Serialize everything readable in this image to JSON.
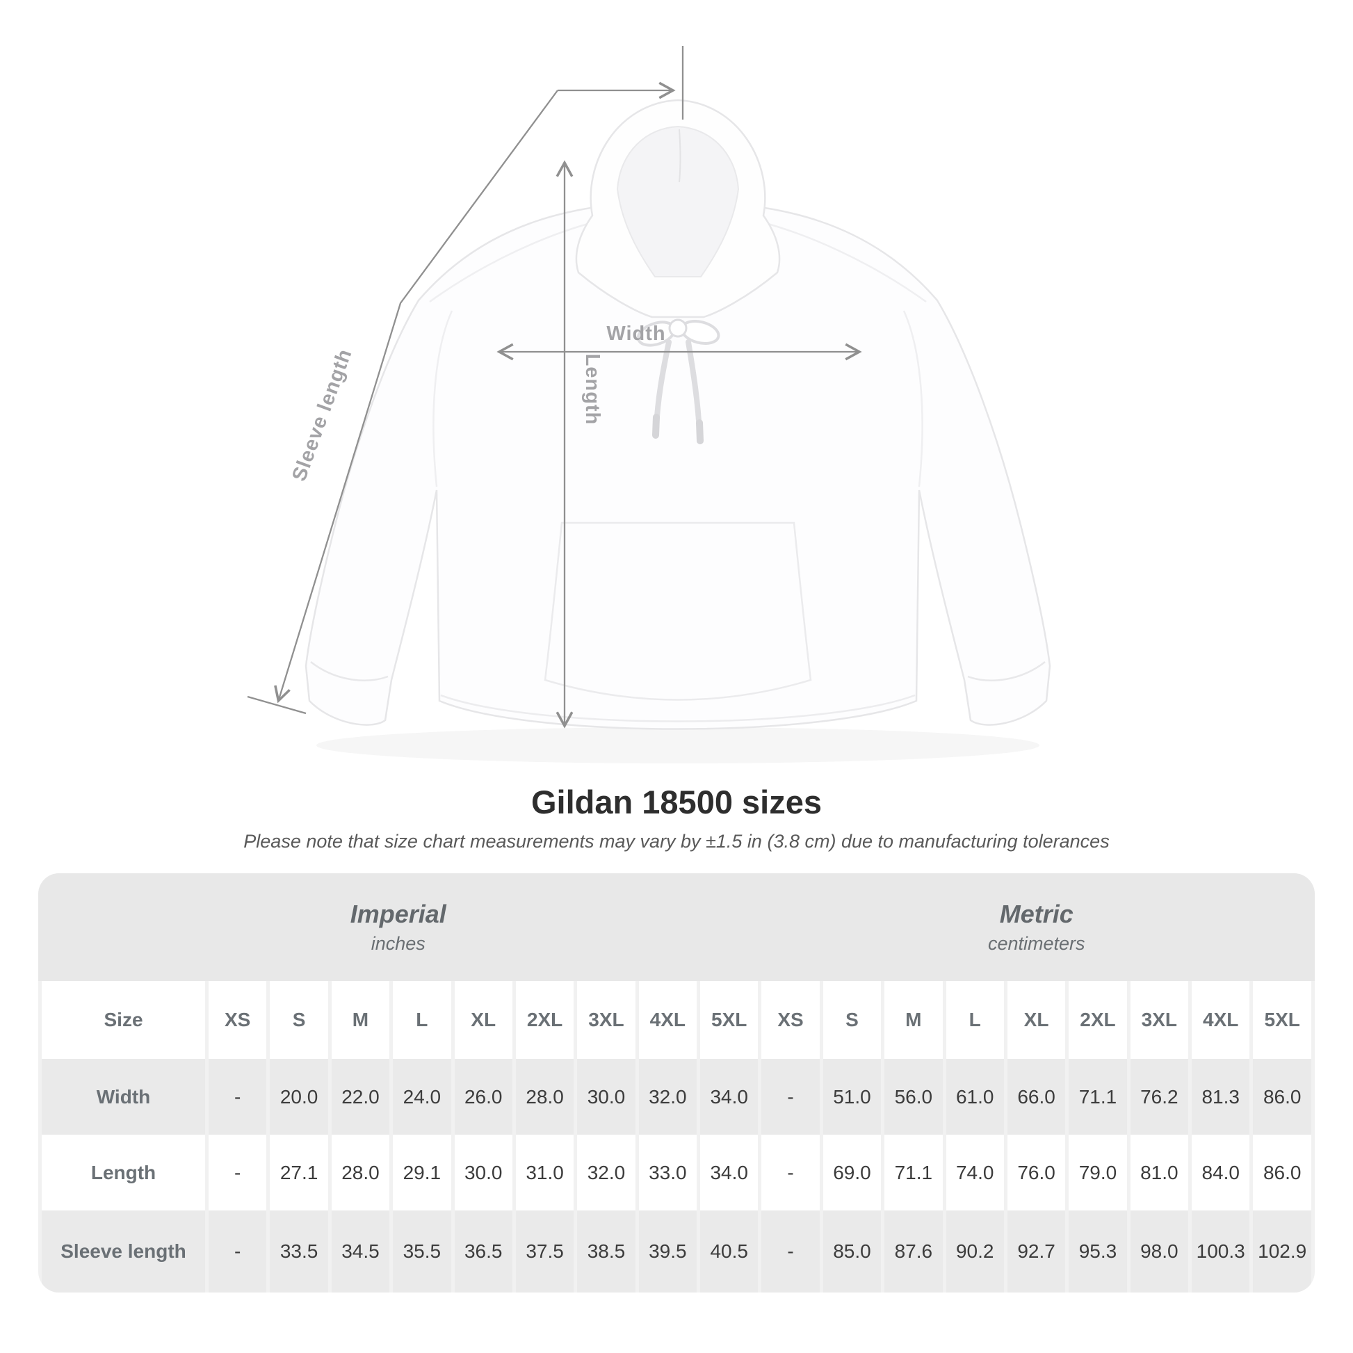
{
  "diagram": {
    "labels": {
      "length": "Length",
      "width": "Width",
      "sleeve": "Sleeve length"
    }
  },
  "title": "Gildan 18500 sizes",
  "subtitle": "Please note that size chart measurements may vary by ±1.5 in (3.8 cm) due to manufacturing tolerances",
  "table": {
    "size_col_header": "Size",
    "sections": [
      {
        "name": "Imperial",
        "unit": "inches"
      },
      {
        "name": "Metric",
        "unit": "centimeters"
      }
    ],
    "sizes": [
      "XS",
      "S",
      "M",
      "L",
      "XL",
      "2XL",
      "3XL",
      "4XL",
      "5XL"
    ],
    "rows": [
      {
        "label": "Width",
        "imperial": [
          "-",
          "20.0",
          "22.0",
          "24.0",
          "26.0",
          "28.0",
          "30.0",
          "32.0",
          "34.0"
        ],
        "metric": [
          "-",
          "51.0",
          "56.0",
          "61.0",
          "66.0",
          "71.1",
          "76.2",
          "81.3",
          "86.0"
        ]
      },
      {
        "label": "Length",
        "imperial": [
          "-",
          "27.1",
          "28.0",
          "29.1",
          "30.0",
          "31.0",
          "32.0",
          "33.0",
          "34.0"
        ],
        "metric": [
          "-",
          "69.0",
          "71.1",
          "74.0",
          "76.0",
          "79.0",
          "81.0",
          "84.0",
          "86.0"
        ]
      },
      {
        "label": "Sleeve length",
        "imperial": [
          "-",
          "33.5",
          "34.5",
          "35.5",
          "36.5",
          "37.5",
          "38.5",
          "39.5",
          "40.5"
        ],
        "metric": [
          "-",
          "85.0",
          "87.6",
          "90.2",
          "92.7",
          "95.3",
          "98.0",
          "100.3",
          "102.9"
        ]
      }
    ]
  },
  "colors": {
    "page_bg": "#ffffff",
    "band_bg": "#e8e8e8",
    "alt_row_bg": "#eaeaea",
    "cell_bg": "#ffffff",
    "gap_bg": "#f1f1f1",
    "measure_line": "#909090",
    "diagram_label": "#a3a3a6",
    "heading_text": "#2e2e2e",
    "table_label_text": "#6a7075",
    "table_value_text": "#3c3c3c"
  }
}
